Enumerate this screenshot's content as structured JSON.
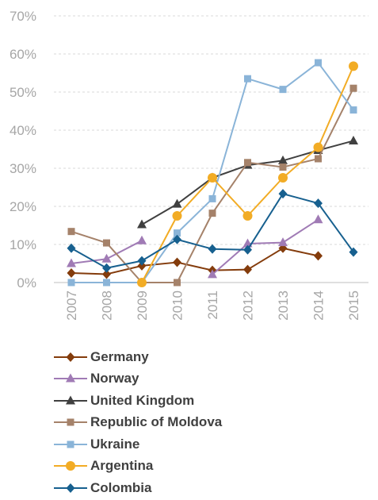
{
  "chart_data": {
    "type": "line",
    "x": [
      "2007",
      "2008",
      "2009",
      "2010",
      "2011",
      "2012",
      "2013",
      "2014",
      "2015"
    ],
    "y_ticks": [
      "0%",
      "10%",
      "20%",
      "30%",
      "40%",
      "50%",
      "60%",
      "70%"
    ],
    "ylim": [
      0,
      70
    ],
    "grid": true,
    "legend_position": "bottom",
    "series": [
      {
        "name": "Germany",
        "color": "#843c0c",
        "marker": "diamond",
        "values": [
          2.5,
          2.2,
          4.4,
          5.3,
          3.2,
          3.4,
          9.0,
          7.0,
          null
        ]
      },
      {
        "name": "Norway",
        "color": "#a07bb5",
        "marker": "triangle",
        "values": [
          5.0,
          6.2,
          11.0,
          null,
          2.1,
          10.2,
          10.5,
          16.5,
          null
        ]
      },
      {
        "name": "United Kingdom",
        "color": "#404040",
        "marker": "triangle",
        "values": [
          null,
          null,
          15.2,
          20.6,
          27.5,
          30.8,
          32.0,
          34.7,
          37.2
        ]
      },
      {
        "name": "Republic of Moldova",
        "color": "#a5826a",
        "marker": "square",
        "values": [
          13.4,
          10.4,
          0.0,
          0.0,
          18.2,
          31.5,
          30.3,
          32.5,
          51.0
        ]
      },
      {
        "name": "Ukraine",
        "color": "#8ab4d8",
        "marker": "square",
        "values": [
          0.0,
          0.0,
          0.0,
          13.0,
          22.0,
          53.5,
          50.7,
          57.7,
          45.3
        ]
      },
      {
        "name": "Argentina",
        "color": "#f2ac25",
        "marker": "circle",
        "values": [
          null,
          null,
          0.0,
          17.5,
          27.5,
          17.5,
          27.5,
          35.5,
          56.8
        ]
      },
      {
        "name": "Colombia",
        "color": "#17608f",
        "marker": "diamond",
        "values": [
          9.0,
          3.8,
          5.7,
          11.3,
          8.8,
          8.6,
          23.3,
          20.8,
          8.0
        ]
      }
    ]
  }
}
